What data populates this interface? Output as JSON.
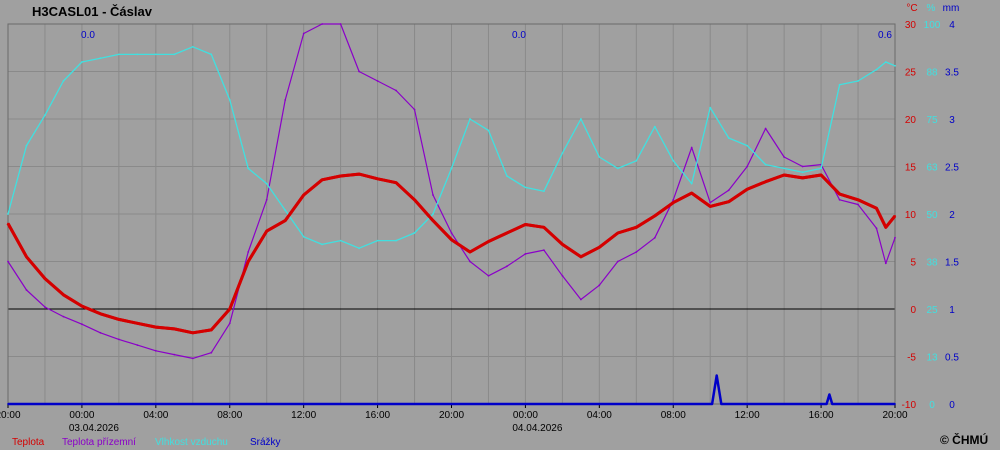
{
  "chart_data": {
    "type": "line",
    "title": "H3CASL01 - Čáslav",
    "x": [
      "20:00",
      "00:00",
      "04:00",
      "08:00",
      "12:00",
      "16:00",
      "20:00",
      "00:00",
      "04:00",
      "08:00",
      "12:00",
      "16:00",
      "20:00"
    ],
    "x_tick_labels": [
      "20:00",
      "00:00",
      "04:00",
      "08:00",
      "12:00",
      "16:00",
      "20:00",
      "00:00",
      "04:00",
      "08:00",
      "12:00",
      "16:00",
      "20:00"
    ],
    "date_labels": [
      {
        "tick": 1,
        "text": "03.04.2026"
      },
      {
        "tick": 7,
        "text": "04.04.2026"
      }
    ],
    "x_range_hours": [
      0,
      48
    ],
    "temp_axis": {
      "unit": "°C",
      "ylim": [
        -10,
        30
      ],
      "ticks": [
        30,
        25,
        20,
        15,
        10,
        5,
        0,
        -5,
        -10
      ]
    },
    "humidity_axis": {
      "unit": "%",
      "ylim": [
        0,
        100
      ],
      "ticks": [
        "100",
        "88",
        "75",
        "63",
        "50",
        "38",
        "25",
        "13",
        "0"
      ]
    },
    "precip_axis": {
      "unit": "mm",
      "ylim": [
        0,
        4
      ],
      "ticks": [
        "4",
        "3.5",
        "3",
        "2.5",
        "2",
        "1.5",
        "1",
        "0.5",
        "0"
      ]
    },
    "precip_totals": [
      "0.0",
      "0.0",
      "0.6"
    ],
    "grid": true,
    "legend_position": "bottom-left",
    "series": [
      {
        "name": "Teplota",
        "color": "#d40000",
        "axis": "temp",
        "points": [
          [
            0,
            9
          ],
          [
            1,
            5.5
          ],
          [
            2,
            3.2
          ],
          [
            3,
            1.5
          ],
          [
            4,
            0.3
          ],
          [
            5,
            -0.5
          ],
          [
            6,
            -1.1
          ],
          [
            7,
            -1.5
          ],
          [
            8,
            -1.9
          ],
          [
            9,
            -2.1
          ],
          [
            10,
            -2.5
          ],
          [
            11,
            -2.2
          ],
          [
            12,
            0
          ],
          [
            13,
            5
          ],
          [
            14,
            8.2
          ],
          [
            15,
            9.3
          ],
          [
            16,
            12
          ],
          [
            17,
            13.6
          ],
          [
            18,
            14
          ],
          [
            19,
            14.2
          ],
          [
            20,
            13.7
          ],
          [
            21,
            13.3
          ],
          [
            22,
            11.5
          ],
          [
            23,
            9.3
          ],
          [
            24,
            7.3
          ],
          [
            25,
            6
          ],
          [
            26,
            7.1
          ],
          [
            27,
            8
          ],
          [
            28,
            8.9
          ],
          [
            29,
            8.6
          ],
          [
            30,
            6.8
          ],
          [
            31,
            5.5
          ],
          [
            32,
            6.5
          ],
          [
            33,
            8
          ],
          [
            34,
            8.6
          ],
          [
            35,
            9.8
          ],
          [
            36,
            11.2
          ],
          [
            37,
            12.2
          ],
          [
            38,
            10.8
          ],
          [
            39,
            11.3
          ],
          [
            40,
            12.6
          ],
          [
            41,
            13.4
          ],
          [
            42,
            14.1
          ],
          [
            43,
            13.8
          ],
          [
            44,
            14.1
          ],
          [
            45,
            12.1
          ],
          [
            46,
            11.5
          ],
          [
            47,
            10.6
          ],
          [
            47.5,
            8.6
          ],
          [
            48,
            9.8
          ]
        ]
      },
      {
        "name": "Teplota přízemní",
        "color": "#8a00c8",
        "axis": "temp",
        "points": [
          [
            0,
            5
          ],
          [
            1,
            2
          ],
          [
            2,
            0.2
          ],
          [
            3,
            -0.8
          ],
          [
            4,
            -1.6
          ],
          [
            5,
            -2.5
          ],
          [
            6,
            -3.2
          ],
          [
            7,
            -3.8
          ],
          [
            8,
            -4.4
          ],
          [
            9,
            -4.8
          ],
          [
            10,
            -5.2
          ],
          [
            11,
            -4.6
          ],
          [
            12,
            -1.5
          ],
          [
            13,
            6
          ],
          [
            14,
            11.5
          ],
          [
            15,
            22
          ],
          [
            16,
            29
          ],
          [
            17,
            30
          ],
          [
            18,
            30
          ],
          [
            19,
            25
          ],
          [
            20,
            24
          ],
          [
            21,
            23
          ],
          [
            22,
            21
          ],
          [
            23,
            12
          ],
          [
            24,
            8
          ],
          [
            25,
            5
          ],
          [
            26,
            3.5
          ],
          [
            27,
            4.5
          ],
          [
            28,
            5.8
          ],
          [
            29,
            6.2
          ],
          [
            30,
            3.5
          ],
          [
            31,
            1
          ],
          [
            32,
            2.5
          ],
          [
            33,
            5
          ],
          [
            34,
            6
          ],
          [
            35,
            7.5
          ],
          [
            36,
            11.5
          ],
          [
            37,
            17
          ],
          [
            38,
            11.2
          ],
          [
            39,
            12.5
          ],
          [
            40,
            15
          ],
          [
            41,
            19
          ],
          [
            42,
            16
          ],
          [
            43,
            15
          ],
          [
            44,
            15.2
          ],
          [
            45,
            11.5
          ],
          [
            46,
            11
          ],
          [
            47,
            8.5
          ],
          [
            47.5,
            4.8
          ],
          [
            48,
            7.5
          ]
        ]
      },
      {
        "name": "Vlhkost vzduchu",
        "color": "#40e0e0",
        "axis": "humidity",
        "points": [
          [
            0,
            50
          ],
          [
            1,
            68
          ],
          [
            2,
            76
          ],
          [
            3,
            85
          ],
          [
            4,
            90
          ],
          [
            5,
            91
          ],
          [
            6,
            92
          ],
          [
            7,
            92
          ],
          [
            8,
            92
          ],
          [
            9,
            92
          ],
          [
            10,
            94
          ],
          [
            11,
            92
          ],
          [
            12,
            80
          ],
          [
            13,
            62
          ],
          [
            14,
            58
          ],
          [
            15,
            51
          ],
          [
            16,
            44
          ],
          [
            17,
            42
          ],
          [
            18,
            43
          ],
          [
            19,
            41
          ],
          [
            20,
            43
          ],
          [
            21,
            43
          ],
          [
            22,
            45
          ],
          [
            23,
            50
          ],
          [
            24,
            62
          ],
          [
            25,
            75
          ],
          [
            26,
            72
          ],
          [
            27,
            60
          ],
          [
            28,
            57
          ],
          [
            29,
            56
          ],
          [
            30,
            66
          ],
          [
            31,
            75
          ],
          [
            32,
            65
          ],
          [
            33,
            62
          ],
          [
            34,
            64
          ],
          [
            35,
            73
          ],
          [
            36,
            64
          ],
          [
            37,
            58
          ],
          [
            38,
            78
          ],
          [
            39,
            70
          ],
          [
            40,
            68
          ],
          [
            41,
            63
          ],
          [
            42,
            62
          ],
          [
            43,
            61
          ],
          [
            44,
            62
          ],
          [
            45,
            84
          ],
          [
            46,
            85
          ],
          [
            47,
            88
          ],
          [
            47.5,
            90
          ],
          [
            48,
            89
          ]
        ]
      },
      {
        "name": "Srážky",
        "color": "#0000c8",
        "axis": "precip",
        "points": [
          [
            0,
            0
          ],
          [
            38.1,
            0
          ],
          [
            38.35,
            0.3
          ],
          [
            38.6,
            0
          ],
          [
            44.3,
            0
          ],
          [
            44.45,
            0.1
          ],
          [
            44.6,
            0
          ],
          [
            48,
            0
          ]
        ]
      }
    ]
  },
  "copyright": "© ČHMÚ"
}
